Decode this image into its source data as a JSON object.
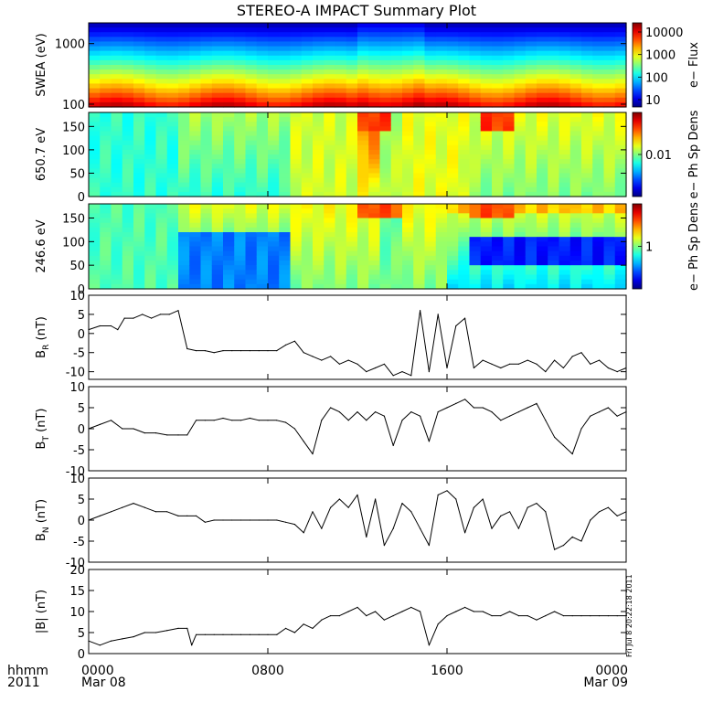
{
  "title": "STEREO-A IMPACT Summary Plot",
  "stamp": "Fri Jul  8 20:22:18 2011",
  "x_axis": {
    "corner_label_1": "hhmm",
    "corner_label_2": "2011",
    "ticks": [
      {
        "top": "0000",
        "bottom": "Mar 08",
        "hour": 0
      },
      {
        "top": "0800",
        "bottom": "",
        "hour": 8
      },
      {
        "top": "1600",
        "bottom": "",
        "hour": 16
      },
      {
        "top": "0000",
        "bottom": "Mar 09",
        "hour": 24
      }
    ],
    "range_hours": [
      0,
      24
    ]
  },
  "chart_data": [
    {
      "type": "heatmap",
      "name": "swea",
      "ylabel": "SWEA (eV)",
      "yscale": "log",
      "ylim": [
        90,
        2200
      ],
      "yticks": [
        "1000",
        "100"
      ],
      "colorbar": {
        "label": "e− Flux",
        "scale": "log",
        "ticks": [
          "10000",
          "1000",
          "100",
          "10"
        ]
      }
    },
    {
      "type": "heatmap",
      "name": "pad-650",
      "ylabel": "650.7 eV",
      "ylim": [
        0,
        180
      ],
      "yticks": [
        "150",
        "100",
        "50",
        "0"
      ],
      "colorbar": {
        "label": "e− Ph Sp Dens",
        "scale": "log",
        "ticks": [
          "0.01"
        ]
      }
    },
    {
      "type": "heatmap",
      "name": "pad-246",
      "ylabel": "246.6 eV",
      "ylim": [
        0,
        180
      ],
      "yticks": [
        "150",
        "100",
        "50",
        "0"
      ],
      "colorbar": {
        "label": "e− Ph Sp Dens",
        "scale": "log",
        "ticks": [
          "1"
        ]
      }
    },
    {
      "type": "line",
      "name": "br",
      "ylabel_main": "B",
      "ylabel_sub": "R",
      "ylabel_unit": " (nT)",
      "ylim": [
        -12,
        10
      ],
      "yticks": [
        "10",
        "5",
        "0",
        "-5",
        "-10"
      ],
      "x_hours": [
        0,
        0.5,
        1,
        1.3,
        1.6,
        2,
        2.4,
        2.8,
        3.2,
        3.6,
        4,
        4.4,
        4.8,
        5.2,
        5.6,
        6,
        6.4,
        6.8,
        7.2,
        7.6,
        8,
        8.4,
        8.8,
        9.2,
        9.6,
        10,
        10.4,
        10.8,
        11.2,
        11.6,
        12,
        12.4,
        12.8,
        13.2,
        13.6,
        14,
        14.4,
        14.8,
        15.2,
        15.6,
        16,
        16.4,
        16.8,
        17.2,
        17.6,
        18,
        18.4,
        18.8,
        19.2,
        19.6,
        20,
        20.4,
        20.8,
        21.2,
        21.6,
        22,
        22.4,
        22.8,
        23.2,
        23.6,
        24
      ],
      "values": [
        1,
        2,
        2,
        1,
        4,
        4,
        5,
        4,
        5,
        5,
        6,
        -4,
        -4.5,
        -4.5,
        -5,
        -4.5,
        -4.5,
        -4.5,
        -4.5,
        -4.5,
        -4.5,
        -4.5,
        -3,
        -2,
        -5,
        -6,
        -7,
        -6,
        -8,
        -7,
        -8,
        -10,
        -9,
        -8,
        -11,
        -10,
        -11,
        6,
        -10,
        5,
        -9,
        2,
        4,
        -9,
        -7,
        -8,
        -9,
        -8,
        -8,
        -7,
        -8,
        -10,
        -7,
        -9,
        -6,
        -5,
        -8,
        -7,
        -9,
        -10,
        -9
      ],
      "series": [
        {
          "values": "values"
        }
      ]
    },
    {
      "type": "line",
      "name": "bt",
      "ylabel_main": "B",
      "ylabel_sub": "T",
      "ylabel_unit": " (nT)",
      "ylim": [
        -10,
        10
      ],
      "yticks": [
        "10",
        "5",
        "0",
        "-5",
        "-10"
      ],
      "x_hours": [
        0,
        0.5,
        1,
        1.5,
        2,
        2.5,
        3,
        3.5,
        4,
        4.4,
        4.8,
        5.2,
        5.6,
        6,
        6.4,
        6.8,
        7.2,
        7.6,
        8,
        8.4,
        8.8,
        9.2,
        9.6,
        10,
        10.4,
        10.8,
        11.2,
        11.6,
        12,
        12.4,
        12.8,
        13.2,
        13.6,
        14,
        14.4,
        14.8,
        15.2,
        15.6,
        16,
        16.4,
        16.8,
        17.2,
        17.6,
        18,
        18.4,
        18.8,
        19.2,
        19.6,
        20,
        20.4,
        20.8,
        21.2,
        21.6,
        22,
        22.4,
        22.8,
        23.2,
        23.6,
        24
      ],
      "values": [
        0,
        1,
        2,
        0,
        0,
        -1,
        -1,
        -1.5,
        -1.5,
        -1.5,
        2,
        2,
        2,
        2.5,
        2,
        2,
        2.5,
        2,
        2,
        2,
        1.5,
        0,
        -3,
        -6,
        2,
        5,
        4,
        2,
        4,
        2,
        4,
        3,
        -4,
        2,
        4,
        3,
        -3,
        4,
        5,
        6,
        7,
        5,
        5,
        4,
        2,
        3,
        4,
        5,
        6,
        2,
        -2,
        -4,
        -6,
        0,
        3,
        4,
        5,
        3,
        4
      ],
      "series": [
        {
          "values": "values"
        }
      ]
    },
    {
      "type": "line",
      "name": "bn",
      "ylabel_main": "B",
      "ylabel_sub": "N",
      "ylabel_unit": " (nT)",
      "ylim": [
        -10,
        10
      ],
      "yticks": [
        "10",
        "5",
        "0",
        "-5",
        "-10"
      ],
      "x_hours": [
        0,
        0.5,
        1,
        1.5,
        2,
        2.5,
        3,
        3.5,
        4,
        4.4,
        4.8,
        5.2,
        5.6,
        6,
        6.4,
        6.8,
        7.2,
        7.6,
        8,
        8.4,
        8.8,
        9.2,
        9.6,
        10,
        10.4,
        10.8,
        11.2,
        11.6,
        12,
        12.4,
        12.8,
        13.2,
        13.6,
        14,
        14.4,
        14.8,
        15.2,
        15.6,
        16,
        16.4,
        16.8,
        17.2,
        17.6,
        18,
        18.4,
        18.8,
        19.2,
        19.6,
        20,
        20.4,
        20.8,
        21.2,
        21.6,
        22,
        22.4,
        22.8,
        23.2,
        23.6,
        24
      ],
      "values": [
        0,
        1,
        2,
        3,
        4,
        3,
        2,
        2,
        1,
        1,
        1,
        -0.5,
        0,
        0,
        0,
        0,
        0,
        0,
        0,
        0,
        -0.5,
        -1,
        -3,
        2,
        -2,
        3,
        5,
        3,
        6,
        -4,
        5,
        -6,
        -2,
        4,
        2,
        -2,
        -6,
        6,
        7,
        5,
        -3,
        3,
        5,
        -2,
        1,
        2,
        -2,
        3,
        4,
        2,
        -7,
        -6,
        -4,
        -5,
        0,
        2,
        3,
        1,
        2
      ],
      "series": [
        {
          "values": "values"
        }
      ]
    },
    {
      "type": "line",
      "name": "bmag",
      "ylabel_main": "|B|",
      "ylabel_sub": "",
      "ylabel_unit": " (nT)",
      "ylim": [
        0,
        20
      ],
      "yticks": [
        "20",
        "15",
        "10",
        "5",
        "0"
      ],
      "x_hours": [
        0,
        0.5,
        1,
        1.5,
        2,
        2.5,
        3,
        3.5,
        4,
        4.4,
        4.6,
        4.8,
        5.2,
        5.6,
        6,
        6.4,
        6.8,
        7.2,
        7.6,
        8,
        8.4,
        8.8,
        9.2,
        9.6,
        10,
        10.4,
        10.8,
        11.2,
        11.6,
        12,
        12.4,
        12.8,
        13.2,
        13.6,
        14,
        14.4,
        14.8,
        15.2,
        15.6,
        16,
        16.4,
        16.8,
        17.2,
        17.6,
        18,
        18.4,
        18.8,
        19.2,
        19.6,
        20,
        20.4,
        20.8,
        21.2,
        21.6,
        22,
        22.4,
        22.8,
        23.2,
        23.6,
        24
      ],
      "values": [
        3,
        2,
        3,
        3.5,
        4,
        5,
        5,
        5.5,
        6,
        6,
        2,
        4.5,
        4.5,
        4.5,
        4.5,
        4.5,
        4.5,
        4.5,
        4.5,
        4.5,
        4.5,
        6,
        5,
        7,
        6,
        8,
        9,
        9,
        10,
        11,
        9,
        10,
        8,
        9,
        10,
        11,
        10,
        2,
        7,
        9,
        10,
        11,
        10,
        10,
        9,
        9,
        10,
        9,
        9,
        8,
        9,
        10,
        9,
        9,
        9,
        9,
        9,
        9,
        9,
        9
      ],
      "series": [
        {
          "values": "values"
        }
      ]
    }
  ]
}
